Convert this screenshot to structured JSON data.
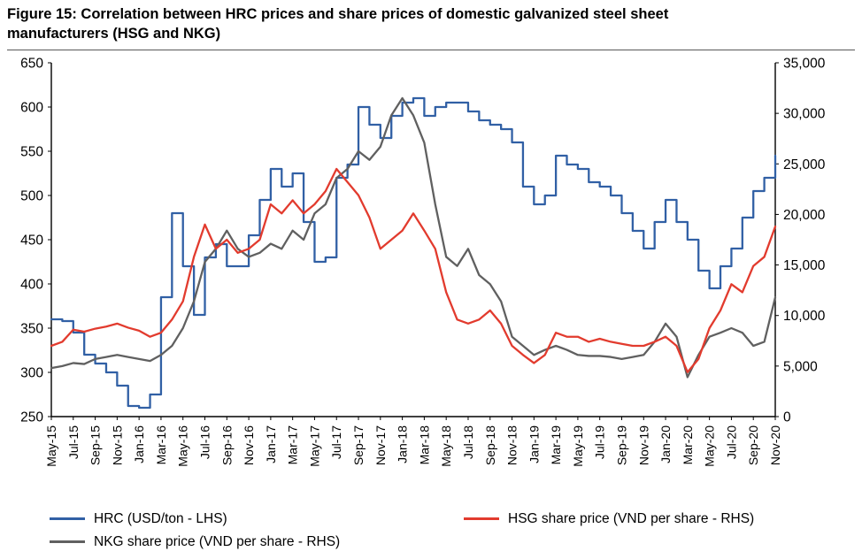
{
  "figure": {
    "title_line1": "Figure 15: Correlation between HRC prices and share prices of domestic galvanized steel sheet",
    "title_line2": "manufacturers (HSG and NKG)"
  },
  "chart_data": {
    "type": "line",
    "title": "Figure 15: Correlation between HRC prices and share prices of domestic galvanized steel sheet manufacturers (HSG and NKG)",
    "legend_position": "bottom",
    "grid": false,
    "x_tick_step": 2,
    "x_labels_all": [
      "May-15",
      "Jun-15",
      "Jul-15",
      "Aug-15",
      "Sep-15",
      "Oct-15",
      "Nov-15",
      "Dec-15",
      "Jan-16",
      "Feb-16",
      "Mar-16",
      "Apr-16",
      "May-16",
      "Jun-16",
      "Jul-16",
      "Aug-16",
      "Sep-16",
      "Oct-16",
      "Nov-16",
      "Dec-16",
      "Jan-17",
      "Feb-17",
      "Mar-17",
      "Apr-17",
      "May-17",
      "Jun-17",
      "Jul-17",
      "Aug-17",
      "Sep-17",
      "Oct-17",
      "Nov-17",
      "Dec-17",
      "Jan-18",
      "Feb-18",
      "Mar-18",
      "Apr-18",
      "May-18",
      "Jun-18",
      "Jul-18",
      "Aug-18",
      "Sep-18",
      "Oct-18",
      "Nov-18",
      "Dec-18",
      "Jan-19",
      "Feb-19",
      "Mar-19",
      "Apr-19",
      "May-19",
      "Jun-19",
      "Jul-19",
      "Aug-19",
      "Sep-19",
      "Oct-19",
      "Nov-19",
      "Dec-19",
      "Jan-20",
      "Feb-20",
      "Mar-20",
      "Apr-20",
      "May-20",
      "Jun-20",
      "Jul-20",
      "Aug-20",
      "Sep-20",
      "Oct-20",
      "Nov-20"
    ],
    "left_axis": {
      "min": 250,
      "max": 650,
      "step": 50,
      "tick_labels": [
        "650",
        "600",
        "550",
        "500",
        "450",
        "400",
        "350",
        "300",
        "250"
      ]
    },
    "right_axis": {
      "min": 0,
      "max": 35000,
      "step": 5000,
      "tick_labels": [
        "35,000",
        "30,000",
        "25,000",
        "20,000",
        "15,000",
        "10,000",
        "5,000",
        "0"
      ]
    },
    "series": [
      {
        "name": "HRC (USD/ton - LHS)",
        "axis": "left",
        "color": "#3160a5",
        "style": "step",
        "values": [
          360,
          358,
          345,
          320,
          310,
          300,
          285,
          262,
          260,
          275,
          385,
          480,
          420,
          365,
          430,
          445,
          420,
          420,
          455,
          495,
          530,
          510,
          525,
          470,
          425,
          430,
          520,
          535,
          600,
          580,
          565,
          590,
          605,
          610,
          590,
          600,
          605,
          605,
          595,
          585,
          580,
          575,
          560,
          510,
          490,
          500,
          545,
          535,
          530,
          515,
          510,
          500,
          480,
          460,
          440,
          470,
          495,
          470,
          450,
          415,
          395,
          420,
          440,
          475,
          505,
          520,
          545
        ]
      },
      {
        "name": "HSG share price (VND per share - RHS)",
        "axis": "right",
        "color": "#e23b2e",
        "style": "line",
        "values": [
          7000,
          7400,
          8600,
          8400,
          8700,
          8900,
          9200,
          8800,
          8500,
          7900,
          8300,
          9600,
          11400,
          15800,
          19000,
          16600,
          17500,
          16200,
          16600,
          17500,
          21000,
          20100,
          21400,
          20100,
          21000,
          22300,
          24500,
          23200,
          21900,
          19700,
          16600,
          17500,
          18400,
          20100,
          18400,
          16600,
          12300,
          9600,
          9200,
          9600,
          10500,
          9200,
          7000,
          6100,
          5300,
          6100,
          8300,
          7900,
          7900,
          7400,
          7700,
          7400,
          7200,
          7000,
          7000,
          7400,
          7900,
          7000,
          4400,
          5700,
          8750,
          10500,
          13100,
          12300,
          14900,
          15800,
          18800
        ]
      },
      {
        "name": "NKG share price (VND per share - RHS)",
        "axis": "right",
        "color": "#606060",
        "style": "line",
        "values": [
          4800,
          5000,
          5300,
          5200,
          5700,
          5900,
          6100,
          5900,
          5700,
          5500,
          6100,
          7000,
          8750,
          11400,
          15300,
          16600,
          18400,
          16600,
          15800,
          16200,
          17100,
          16600,
          18400,
          17500,
          20100,
          21000,
          23600,
          24500,
          26250,
          25400,
          26700,
          29800,
          31500,
          29800,
          27100,
          21000,
          15800,
          14900,
          16600,
          14000,
          13100,
          11400,
          7900,
          7000,
          6100,
          6600,
          7000,
          6600,
          6100,
          6000,
          6000,
          5900,
          5700,
          5900,
          6100,
          7400,
          9200,
          7900,
          3900,
          6100,
          7900,
          8300,
          8750,
          8300,
          7000,
          7400,
          11800
        ]
      }
    ]
  }
}
